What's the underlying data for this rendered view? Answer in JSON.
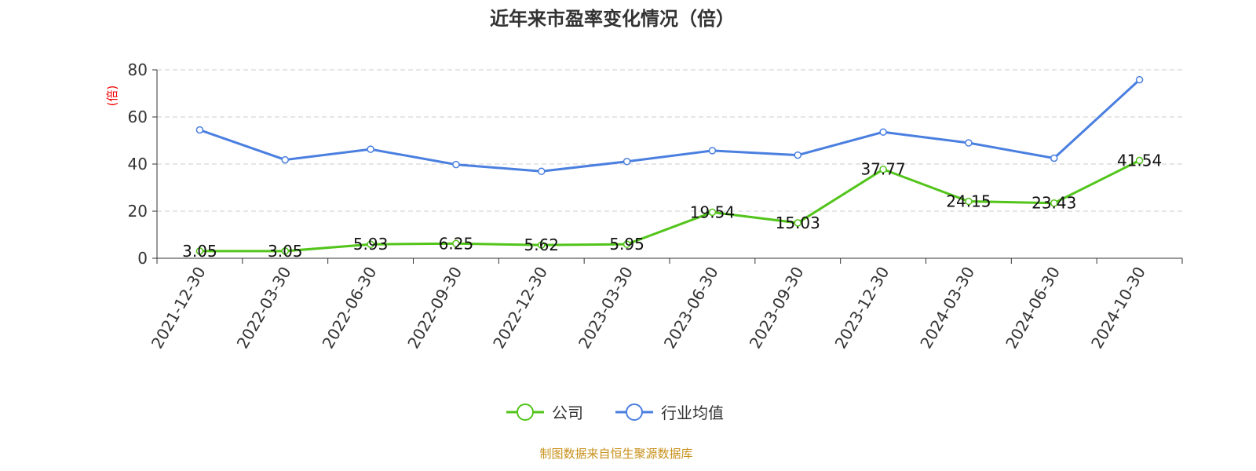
{
  "chart_data": {
    "type": "line",
    "title": "近年来市盈率变化情况（倍）",
    "ylabel": "(倍)",
    "xlabel": "",
    "ylim": [
      0,
      80
    ],
    "yticks": [
      0,
      20,
      40,
      60,
      80
    ],
    "grid": true,
    "legend_position": "bottom",
    "categories": [
      "2021-12-30",
      "2022-03-30",
      "2022-06-30",
      "2022-09-30",
      "2022-12-30",
      "2023-03-30",
      "2023-06-30",
      "2023-09-30",
      "2023-12-30",
      "2024-03-30",
      "2024-06-30",
      "2024-10-30"
    ],
    "series": [
      {
        "name": "公司",
        "color": "#52c41a",
        "show_labels": true,
        "values": [
          3.05,
          3.05,
          5.93,
          6.25,
          5.62,
          5.95,
          19.54,
          15.03,
          37.77,
          24.15,
          23.43,
          41.54
        ]
      },
      {
        "name": "行业均值",
        "color": "#4a7fe0",
        "show_labels": false,
        "values": [
          54.5,
          41.8,
          46.3,
          39.8,
          36.9,
          41.1,
          45.7,
          43.8,
          53.6,
          49.0,
          42.5,
          75.8
        ]
      }
    ],
    "source": "制图数据来自恒生聚源数据库"
  }
}
